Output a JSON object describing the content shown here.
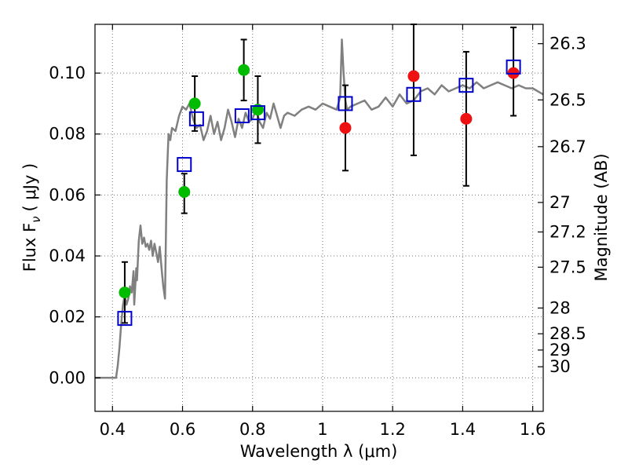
{
  "chart_data": {
    "type": "scatter",
    "title": "",
    "xlabel": "Wavelength  λ (μm)",
    "ylabel": "Flux  F",
    "ylabel_sub": "ν",
    "ylabel_unit": "( μJy )",
    "y2label": "Magnitude (AB)",
    "xlim": [
      0.35,
      1.63
    ],
    "ylim": [
      -0.011,
      0.116
    ],
    "grid": true,
    "xticks": [
      {
        "value": 0.4,
        "label": "0.4"
      },
      {
        "value": 0.6,
        "label": "0.6"
      },
      {
        "value": 0.8,
        "label": "0.8"
      },
      {
        "value": 1.0,
        "label": "1"
      },
      {
        "value": 1.2,
        "label": "1.2"
      },
      {
        "value": 1.4,
        "label": "1.4"
      },
      {
        "value": 1.6,
        "label": "1.6"
      }
    ],
    "yticks": [
      {
        "value": 0.0,
        "label": "0.00"
      },
      {
        "value": 0.02,
        "label": "0.02"
      },
      {
        "value": 0.04,
        "label": "0.04"
      },
      {
        "value": 0.06,
        "label": "0.06"
      },
      {
        "value": 0.08,
        "label": "0.08"
      },
      {
        "value": 0.1,
        "label": "0.10"
      }
    ],
    "y2ticks": [
      {
        "value": 26.3,
        "label": "26.3"
      },
      {
        "value": 26.5,
        "label": "26.5"
      },
      {
        "value": 26.7,
        "label": "26.7"
      },
      {
        "value": 27.0,
        "label": "27"
      },
      {
        "value": 27.2,
        "label": "27.2"
      },
      {
        "value": 27.5,
        "label": "27.5"
      },
      {
        "value": 28.0,
        "label": "28"
      },
      {
        "value": 28.5,
        "label": "28.5"
      },
      {
        "value": 29.0,
        "label": "29"
      },
      {
        "value": 30.0,
        "label": "30"
      }
    ],
    "colors": {
      "model": "#808080",
      "green": "#00bb00",
      "red": "#ee1111",
      "squares": "#0000cc",
      "errorbars": "#000000"
    },
    "series": [
      {
        "type": "line",
        "x": [
          0.35,
          0.4,
          0.41,
          0.415,
          0.42,
          0.425,
          0.43,
          0.435,
          0.44,
          0.445,
          0.45,
          0.455,
          0.46,
          0.462,
          0.465,
          0.468,
          0.47,
          0.475,
          0.48,
          0.485,
          0.49,
          0.495,
          0.5,
          0.505,
          0.51,
          0.515,
          0.52,
          0.525,
          0.53,
          0.535,
          0.54,
          0.545,
          0.55,
          0.555,
          0.56,
          0.565,
          0.57,
          0.58,
          0.59,
          0.6,
          0.61,
          0.62,
          0.63,
          0.64,
          0.65,
          0.66,
          0.67,
          0.68,
          0.69,
          0.7,
          0.71,
          0.72,
          0.73,
          0.74,
          0.75,
          0.76,
          0.77,
          0.78,
          0.79,
          0.8,
          0.81,
          0.82,
          0.83,
          0.84,
          0.85,
          0.86,
          0.87,
          0.88,
          0.89,
          0.9,
          0.92,
          0.94,
          0.96,
          0.98,
          1.0,
          1.02,
          1.04,
          1.05,
          1.055,
          1.06,
          1.065,
          1.07,
          1.08,
          1.1,
          1.12,
          1.14,
          1.16,
          1.18,
          1.2,
          1.22,
          1.24,
          1.26,
          1.28,
          1.3,
          1.32,
          1.34,
          1.36,
          1.38,
          1.4,
          1.42,
          1.44,
          1.46,
          1.48,
          1.5,
          1.52,
          1.54,
          1.56,
          1.58,
          1.6,
          1.63
        ],
        "y": [
          0.0,
          0.0,
          0.0,
          0.004,
          0.01,
          0.018,
          0.024,
          0.027,
          0.024,
          0.026,
          0.03,
          0.028,
          0.035,
          0.024,
          0.03,
          0.036,
          0.032,
          0.045,
          0.05,
          0.044,
          0.046,
          0.043,
          0.044,
          0.042,
          0.045,
          0.04,
          0.044,
          0.041,
          0.038,
          0.043,
          0.036,
          0.03,
          0.026,
          0.065,
          0.08,
          0.078,
          0.082,
          0.081,
          0.086,
          0.089,
          0.088,
          0.09,
          0.085,
          0.082,
          0.083,
          0.078,
          0.081,
          0.086,
          0.08,
          0.084,
          0.078,
          0.082,
          0.088,
          0.084,
          0.079,
          0.085,
          0.082,
          0.087,
          0.084,
          0.085,
          0.088,
          0.084,
          0.082,
          0.087,
          0.085,
          0.09,
          0.086,
          0.082,
          0.086,
          0.087,
          0.086,
          0.088,
          0.089,
          0.088,
          0.09,
          0.089,
          0.088,
          0.092,
          0.111,
          0.1,
          0.091,
          0.088,
          0.089,
          0.09,
          0.091,
          0.088,
          0.089,
          0.092,
          0.089,
          0.093,
          0.09,
          0.091,
          0.094,
          0.095,
          0.093,
          0.096,
          0.094,
          0.095,
          0.096,
          0.095,
          0.097,
          0.095,
          0.096,
          0.097,
          0.096,
          0.095,
          0.096,
          0.095,
          0.095,
          0.093
        ]
      },
      {
        "type": "scatter",
        "marker": "circle",
        "color": "green",
        "points": [
          {
            "x": 0.435,
            "y": 0.028,
            "err_hi": 0.01,
            "err_lo": 0.01
          },
          {
            "x": 0.605,
            "y": 0.061,
            "err_hi": 0.006,
            "err_lo": 0.007
          },
          {
            "x": 0.635,
            "y": 0.09,
            "err_hi": 0.009,
            "err_lo": 0.009
          },
          {
            "x": 0.775,
            "y": 0.101,
            "err_hi": 0.01,
            "err_lo": 0.01
          },
          {
            "x": 0.815,
            "y": 0.088,
            "err_hi": 0.011,
            "err_lo": 0.011
          }
        ]
      },
      {
        "type": "scatter",
        "marker": "circle",
        "color": "red",
        "points": [
          {
            "x": 1.065,
            "y": 0.082,
            "err_hi": 0.014,
            "err_lo": 0.014
          },
          {
            "x": 1.26,
            "y": 0.099,
            "err_hi": 0.017,
            "err_lo": 0.026
          },
          {
            "x": 1.41,
            "y": 0.085,
            "err_hi": 0.022,
            "err_lo": 0.022
          },
          {
            "x": 1.545,
            "y": 0.1,
            "err_hi": 0.015,
            "err_lo": 0.014
          }
        ]
      },
      {
        "type": "scatter",
        "marker": "open-square",
        "color": "squares",
        "points": [
          {
            "x": 0.435,
            "y": 0.0195
          },
          {
            "x": 0.605,
            "y": 0.07
          },
          {
            "x": 0.64,
            "y": 0.085
          },
          {
            "x": 0.77,
            "y": 0.086
          },
          {
            "x": 0.815,
            "y": 0.087
          },
          {
            "x": 1.065,
            "y": 0.09
          },
          {
            "x": 1.26,
            "y": 0.093
          },
          {
            "x": 1.41,
            "y": 0.096
          },
          {
            "x": 1.545,
            "y": 0.102
          }
        ]
      }
    ]
  }
}
